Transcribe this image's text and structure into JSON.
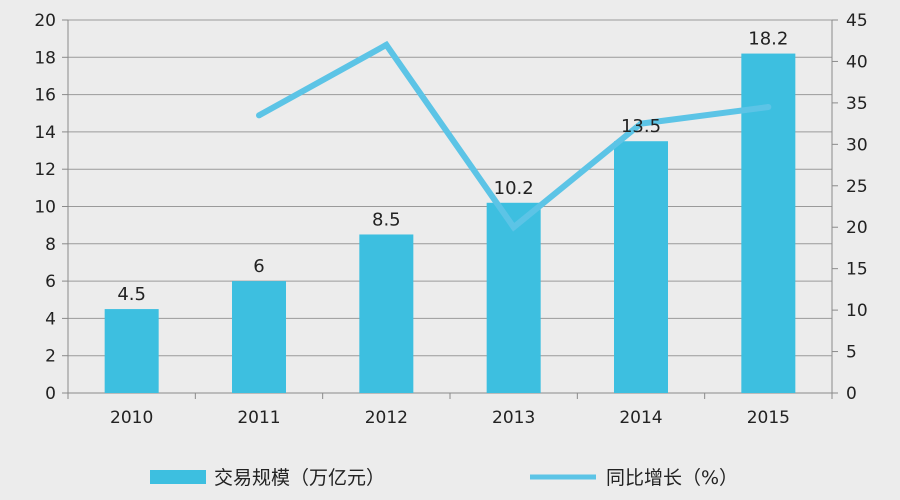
{
  "chart_data": {
    "type": "bar",
    "categories": [
      "2010",
      "2011",
      "2012",
      "2013",
      "2014",
      "2015"
    ],
    "series": [
      {
        "name": "交易规模（万亿元）",
        "type": "bar",
        "axis": "left",
        "values": [
          4.5,
          6,
          8.5,
          10.2,
          13.5,
          18.2
        ],
        "data_labels": [
          "4.5",
          "6",
          "8.5",
          "10.2",
          "13.5",
          "18.2"
        ],
        "color": "#3dbfe0"
      },
      {
        "name": "同比增长（%）",
        "type": "line",
        "axis": "right",
        "values": [
          null,
          33.5,
          42,
          20,
          32.5,
          34.5
        ],
        "color": "#5cc4e6"
      }
    ],
    "y_left": {
      "ylim": [
        0,
        20
      ],
      "ticks": [
        "0",
        "2",
        "4",
        "6",
        "8",
        "10",
        "12",
        "14",
        "16",
        "18",
        "20"
      ]
    },
    "y_right": {
      "ylim": [
        0,
        45
      ],
      "ticks": [
        "0",
        "5",
        "10",
        "15",
        "20",
        "25",
        "30",
        "35",
        "40",
        "45"
      ]
    },
    "grid": true,
    "legend_position": "bottom",
    "colors": {
      "background": "#ececec",
      "grid": "#9a9a9a",
      "axis": "#8a8a8a",
      "bar": "#3dbfe0",
      "line": "#5cc4e6"
    }
  }
}
